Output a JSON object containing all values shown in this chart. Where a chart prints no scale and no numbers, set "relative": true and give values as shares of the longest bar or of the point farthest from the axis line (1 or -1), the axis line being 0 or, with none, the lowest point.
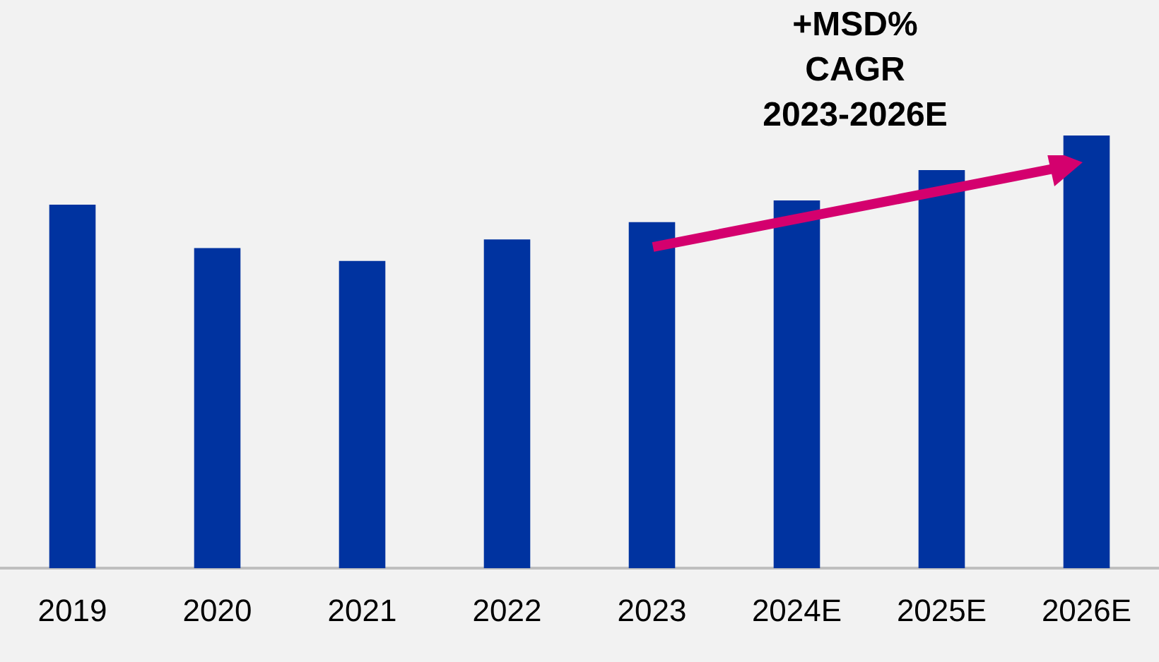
{
  "chart_data": {
    "type": "bar",
    "relative": true,
    "categories": [
      "2019",
      "2020",
      "2021",
      "2022",
      "2023",
      "2024E",
      "2025E",
      "2026E"
    ],
    "values": [
      0.84,
      0.74,
      0.71,
      0.76,
      0.8,
      0.85,
      0.92,
      1
    ],
    "color": "#0033a0",
    "grid": false,
    "legend": false,
    "annotations": [
      "+MSD%\nCAGR\n2023-2026E"
    ]
  }
}
